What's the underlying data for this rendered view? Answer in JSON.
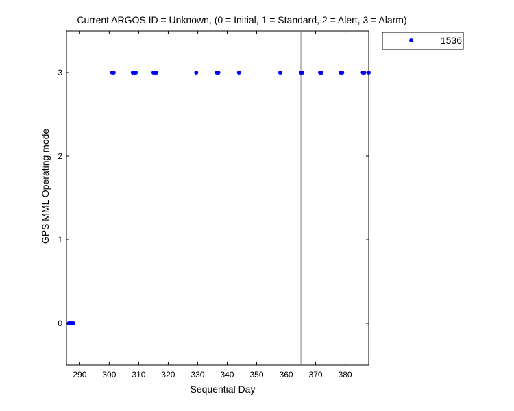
{
  "chart_data": {
    "type": "scatter",
    "title": "Current ARGOS ID = Unknown, (0 = Initial, 1 = Standard, 2 = Alert, 3 = Alarm)",
    "xlabel": "Sequential Day",
    "ylabel": "GPS MML Operating mode",
    "xlim": [
      285.5,
      388
    ],
    "ylim": [
      -0.5,
      3.5
    ],
    "xticks": [
      290,
      300,
      310,
      320,
      330,
      340,
      350,
      360,
      370,
      380
    ],
    "yticks": [
      0,
      1,
      2,
      3
    ],
    "grid": false,
    "legend_position": "outside-top-right",
    "marker_color": "#0000ff",
    "vline": {
      "x": 365,
      "color": "#808080"
    },
    "series": [
      {
        "name": "1536",
        "x": [
          286.3,
          286.6,
          286.9,
          287.2,
          287.5,
          287.8,
          301.0,
          301.5,
          308.0,
          308.5,
          309.0,
          315.0,
          315.5,
          316.0,
          329.5,
          336.5,
          337.0,
          344.0,
          358.0,
          365.0,
          365.5,
          371.5,
          372.0,
          378.5,
          379.0,
          386.0,
          386.5,
          388.0
        ],
        "y": [
          0,
          0,
          0,
          0,
          0,
          0,
          3,
          3,
          3,
          3,
          3,
          3,
          3,
          3,
          3,
          3,
          3,
          3,
          3,
          3,
          3,
          3,
          3,
          3,
          3,
          3,
          3,
          3
        ]
      }
    ]
  }
}
